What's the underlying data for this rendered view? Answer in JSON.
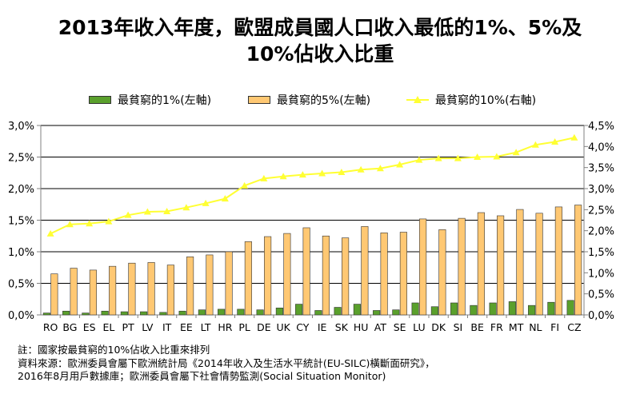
{
  "chart_data": {
    "type": "bar",
    "title_lines": [
      "2013年收入年度，歐盟成員國人口收入最低的1%、5%及",
      "10%佔收入比重"
    ],
    "categories": [
      "RO",
      "BG",
      "ES",
      "EL",
      "PT",
      "LV",
      "IT",
      "EE",
      "LT",
      "HR",
      "PL",
      "DE",
      "UK",
      "CY",
      "IE",
      "SK",
      "HU",
      "AT",
      "SE",
      "LU",
      "DK",
      "SI",
      "BE",
      "FR",
      "MT",
      "NL",
      "FI",
      "CZ"
    ],
    "series": [
      {
        "name": "最貧窮的1%(左軸)",
        "axis": "left",
        "kind": "bar",
        "color": "#5aa02c",
        "values": [
          0.03,
          0.06,
          0.03,
          0.06,
          0.05,
          0.05,
          0.04,
          0.06,
          0.08,
          0.09,
          0.09,
          0.08,
          0.11,
          0.17,
          0.07,
          0.12,
          0.17,
          0.07,
          0.08,
          0.19,
          0.13,
          0.19,
          0.15,
          0.19,
          0.21,
          0.15,
          0.2,
          0.23
        ]
      },
      {
        "name": "最貧窮的5%(左軸)",
        "axis": "left",
        "kind": "bar",
        "color": "#ffc873",
        "values": [
          0.65,
          0.74,
          0.71,
          0.77,
          0.82,
          0.83,
          0.79,
          0.92,
          0.95,
          1.0,
          1.16,
          1.24,
          1.29,
          1.38,
          1.25,
          1.22,
          1.4,
          1.3,
          1.31,
          1.52,
          1.35,
          1.53,
          1.62,
          1.57,
          1.67,
          1.61,
          1.71,
          1.74
        ]
      },
      {
        "name": "最貧窮的10%(右軸)",
        "axis": "right",
        "kind": "line",
        "color": "#ffff33",
        "values": [
          1.93,
          2.15,
          2.17,
          2.22,
          2.37,
          2.45,
          2.46,
          2.55,
          2.65,
          2.76,
          3.07,
          3.24,
          3.29,
          3.33,
          3.36,
          3.39,
          3.45,
          3.48,
          3.57,
          3.68,
          3.72,
          3.72,
          3.75,
          3.76,
          3.86,
          4.04,
          4.11,
          4.21
        ]
      }
    ],
    "y_left": {
      "min": 0,
      "max": 3.0,
      "step": 0.5,
      "ticks": [
        "0,0%",
        "0,5%",
        "1,0%",
        "1,5%",
        "2,0%",
        "2,5%",
        "3,0%"
      ]
    },
    "y_right": {
      "min": 0,
      "max": 4.5,
      "step": 0.5,
      "ticks": [
        "0,0%",
        "0,5%",
        "1,0%",
        "1,5%",
        "2,0%",
        "2,5%",
        "3,0%",
        "3,5%",
        "4,0%",
        "4,5%"
      ]
    },
    "grid": "horizontal",
    "legend_position": "top"
  },
  "notes": [
    "註：國家按最貧窮的10%佔收入比重來排列",
    "資料來源：歐洲委員會屬下歐洲統計局《2014年收入及生活水平統計(EU-SILC)橫斷面研究》，",
    "2016年8月用戶數據庫；歐洲委員會屬下社會情勢監測(Social Situation Monitor)"
  ],
  "colors": {
    "grid": "#000000",
    "bar_outline": "#333333",
    "axis": "#808080"
  }
}
